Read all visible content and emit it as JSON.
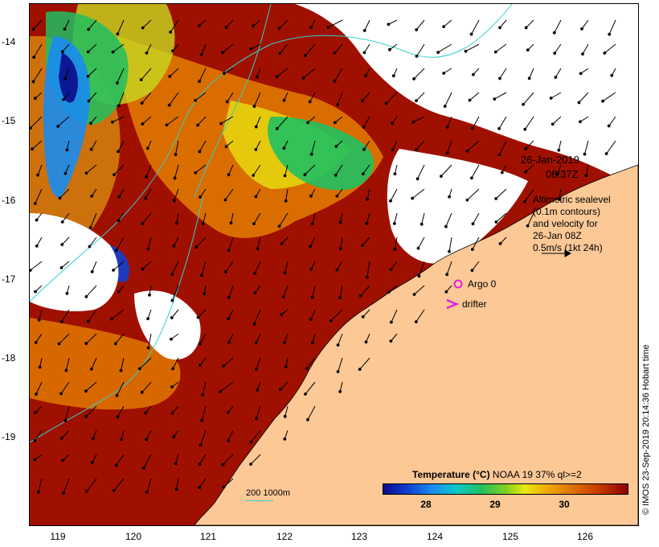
{
  "map": {
    "date_label": "26-Jan-2019",
    "time_label": "08:37Z",
    "legend_lines": [
      "Altimetric sealevel",
      "(0.1m contours)",
      "and velocity for",
      "26-Jan 08Z",
      "0.5m/s (1kt 24h)"
    ],
    "argo_label": "Argo 0",
    "drifter_label": "drifter",
    "latitude_ticks": [
      "-14",
      "-15",
      "-16",
      "-17",
      "-18",
      "-19"
    ],
    "longitude_ticks": [
      "119",
      "120",
      "121",
      "122",
      "123",
      "124",
      "125",
      "126"
    ],
    "scale_label": "200  1000m",
    "credit": "© IMOS 23-Sep-2019 20:14:36 Hobart time",
    "colorbar": {
      "title_bold": "Temperature (°C)",
      "title_rest": " NOAA 19 37% ql>=2",
      "ticks": [
        "28",
        "29",
        "30"
      ],
      "range": [
        27.4,
        30.9
      ]
    },
    "colors": {
      "land": "#fcc896",
      "ocean_no_data": "#ffffff",
      "contour": "#30d0d0",
      "argo_marker": "#e020e0",
      "drifter_marker": "#e020e0",
      "hot": "#a01000",
      "warm": "#e07800",
      "mid": "#e8e810",
      "cool": "#20c060",
      "cold": "#1a8cf0",
      "coldest": "#0a0a8c"
    }
  }
}
